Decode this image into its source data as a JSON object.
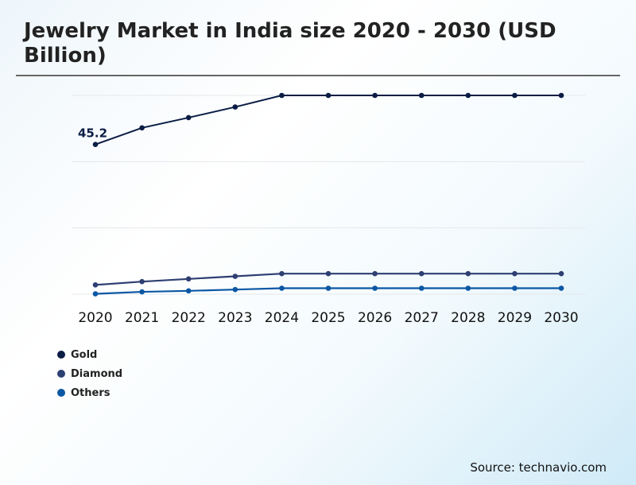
{
  "chart_data": {
    "type": "line",
    "title": "Jewelry Market in India size 2020 - 2030 (USD Billion)",
    "categories": [
      "2020",
      "2021",
      "2022",
      "2023",
      "2024",
      "2025",
      "2026",
      "2027",
      "2028",
      "2029",
      "2030"
    ],
    "ylim": [
      0,
      60
    ],
    "grid": true,
    "legend_placement": "bottom-left",
    "series": [
      {
        "name": "Gold",
        "color": "#0b1d45",
        "values": [
          45.2,
          50.2,
          53.3,
          56.5,
          60,
          60,
          60,
          60,
          60,
          60,
          60
        ]
      },
      {
        "name": "Diamond",
        "color": "#2e3f72",
        "values": [
          2.8,
          3.8,
          4.6,
          5.4,
          6.2,
          6.2,
          6.2,
          6.2,
          6.2,
          6.2,
          6.2
        ]
      },
      {
        "name": "Others",
        "color": "#0b57a4",
        "values": [
          0.1,
          0.7,
          1.0,
          1.4,
          1.8,
          1.8,
          1.8,
          1.8,
          1.8,
          1.8,
          1.8
        ]
      }
    ],
    "annotations": [
      {
        "series": "Gold",
        "category": "2020",
        "text": "45.2"
      }
    ]
  },
  "source": "Source: technavio.com"
}
